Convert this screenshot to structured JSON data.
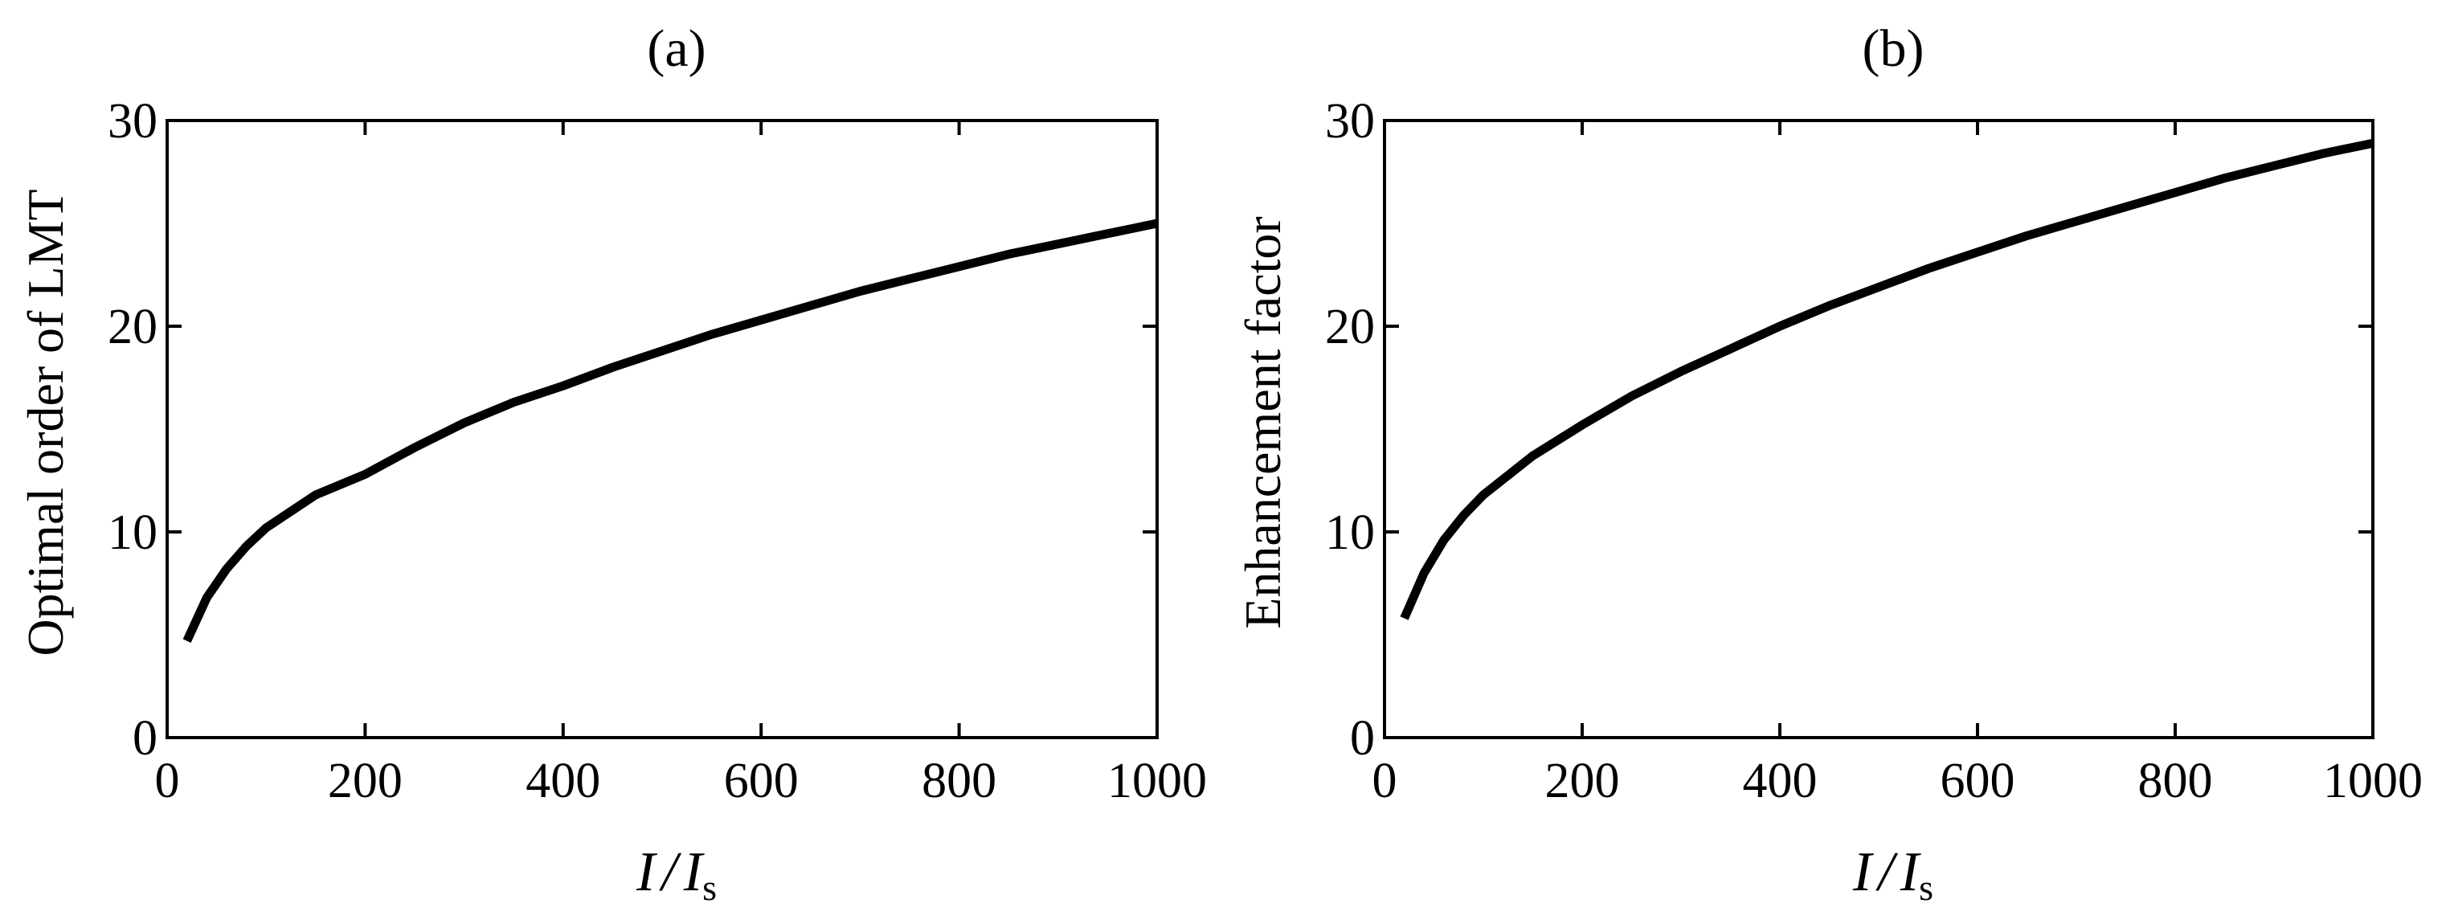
{
  "chart_data": [
    {
      "type": "line",
      "title": "(a)",
      "xlabel": {
        "main": "I",
        "sep": "/",
        "main2": "I",
        "sub": "s"
      },
      "ylabel": "Optimal order of LMT",
      "xlim": [
        0,
        1000
      ],
      "ylim": [
        0,
        30
      ],
      "xticks": [
        0,
        200,
        400,
        600,
        800,
        1000
      ],
      "yticks": [
        0,
        10,
        20,
        30
      ],
      "grid": false,
      "series": [
        {
          "x": [
            20,
            40,
            60,
            80,
            100,
            150,
            200,
            250,
            300,
            350,
            400,
            450,
            500,
            550,
            600,
            650,
            700,
            750,
            800,
            850,
            900,
            950,
            1000
          ],
          "y": [
            4.7,
            6.8,
            8.2,
            9.3,
            10.2,
            11.8,
            12.8,
            14.1,
            15.3,
            16.3,
            17.1,
            18.0,
            18.8,
            19.6,
            20.3,
            21.0,
            21.7,
            22.3,
            22.9,
            23.5,
            24.0,
            24.5,
            25.0
          ]
        }
      ]
    },
    {
      "type": "line",
      "title": "(b)",
      "xlabel": {
        "main": "I",
        "sep": "/",
        "main2": "I",
        "sub": "s"
      },
      "ylabel": "Enhancement factor",
      "xlim": [
        0,
        1000
      ],
      "ylim": [
        0,
        30
      ],
      "xticks": [
        0,
        200,
        400,
        600,
        800,
        1000
      ],
      "yticks": [
        0,
        10,
        20,
        30
      ],
      "grid": false,
      "series": [
        {
          "x": [
            20,
            40,
            60,
            80,
            100,
            150,
            200,
            250,
            300,
            350,
            400,
            450,
            500,
            550,
            600,
            650,
            700,
            750,
            800,
            850,
            900,
            950,
            1000
          ],
          "y": [
            5.8,
            8.0,
            9.6,
            10.8,
            11.8,
            13.7,
            15.2,
            16.6,
            17.8,
            18.9,
            20.0,
            21.0,
            21.9,
            22.8,
            23.6,
            24.4,
            25.1,
            25.8,
            26.5,
            27.2,
            27.8,
            28.4,
            28.9
          ]
        }
      ]
    }
  ]
}
